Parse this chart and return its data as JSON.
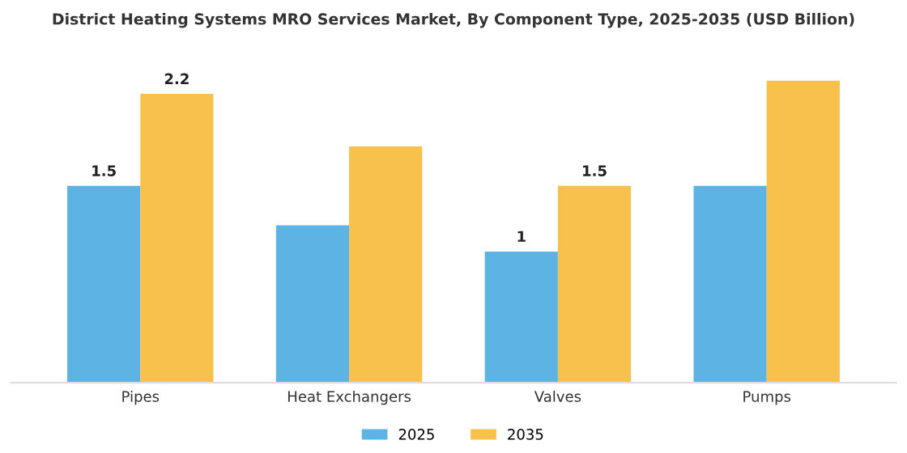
{
  "chart_data": {
    "type": "bar",
    "title": "District Heating Systems MRO Services Market, By Component Type, 2025-2035 (USD Billion)",
    "categories": [
      "Pipes",
      "Heat Exchangers",
      "Valves",
      "Pumps"
    ],
    "series": [
      {
        "name": "2025",
        "color": "#5db3e4",
        "values": [
          1.5,
          1.2,
          1.0,
          1.5
        ],
        "value_labels": [
          "1.5",
          null,
          "1",
          null
        ]
      },
      {
        "name": "2035",
        "color": "#f7c14c",
        "values": [
          2.2,
          1.8,
          1.5,
          2.3
        ],
        "value_labels": [
          "2.2",
          null,
          "1.5",
          null
        ]
      }
    ],
    "legend": "bottom",
    "grid": false,
    "tick_labels": "x"
  }
}
